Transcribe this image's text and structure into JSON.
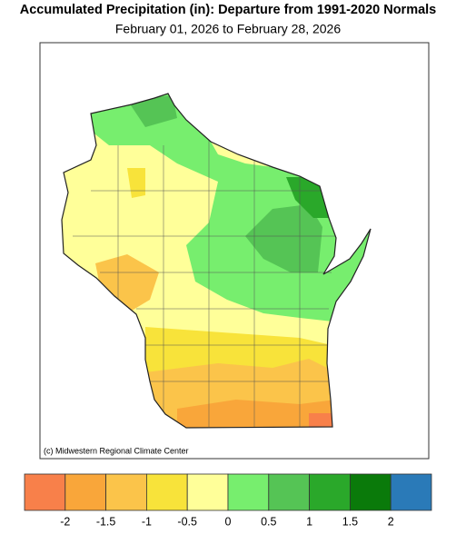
{
  "title": "Accumulated Precipitation (in): Departure from 1991-2020 Normals",
  "subtitle": "February 01, 2026 to February 28, 2026",
  "credit": "(c) Midwestern Regional Climate Center",
  "legend": {
    "colors": [
      "#f8804a",
      "#f9a63a",
      "#fbc44a",
      "#f8e33a",
      "#ffff99",
      "#77ee6e",
      "#55c455",
      "#2aa82a",
      "#0a7a0a",
      "#2a7ab8"
    ],
    "ticks": [
      -2,
      -1.5,
      -1,
      -0.5,
      0,
      0.5,
      1,
      1.5,
      2
    ]
  }
}
